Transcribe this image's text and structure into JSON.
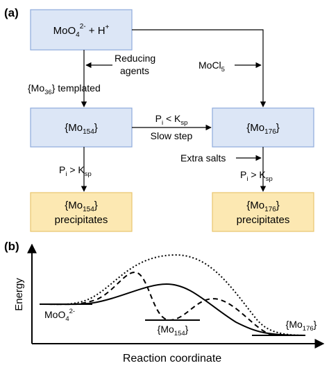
{
  "panel_a": {
    "tag": "(a)",
    "boxes": {
      "reactants": {
        "main": "MoO",
        "sub": "4",
        "sup": "2-",
        "tail": " + H",
        "tail_sup": "+"
      },
      "mo154": {
        "open": "{Mo",
        "sub": "154",
        "close": "}"
      },
      "mo176": {
        "open": "{Mo",
        "sub": "176",
        "close": "}"
      },
      "mo154_precip": {
        "line1_open": "{Mo",
        "line1_sub": "154",
        "line1_close": "}",
        "line2": "precipitates"
      },
      "mo176_precip": {
        "line1_open": "{Mo",
        "line1_sub": "176",
        "line1_close": "}",
        "line2": "precipitates"
      }
    },
    "labels": {
      "reducing_line1": "Reducing",
      "reducing_line2": "agents",
      "templated_open": "{Mo",
      "templated_sub": "36",
      "templated_close": "} templated",
      "mocl_main": "MoCl",
      "mocl_sub": "5",
      "pi_lt_p": "P",
      "pi_lt_i": "i",
      "pi_lt_mid": " < K",
      "pi_lt_sp": "sp",
      "slow_step": "Slow step",
      "pi_gt_left_p": "P",
      "pi_gt_left_i": "i",
      "pi_gt_left_mid": " > K",
      "pi_gt_left_sp": "sp",
      "extra_salts": "Extra salts",
      "pi_gt_right_p": "P",
      "pi_gt_right_i": "i",
      "pi_gt_right_mid": " > K",
      "pi_gt_right_sp": "sp"
    }
  },
  "panel_b": {
    "tag": "(b)",
    "ylabel": "Energy",
    "xlabel": "Reaction coordinate",
    "state_start_main": "MoO",
    "state_start_sub": "4",
    "state_start_sup": "2-",
    "state_mid_open": "{Mo",
    "state_mid_sub": "154",
    "state_mid_close": "}",
    "state_end_open": "{Mo",
    "state_end_sub": "176",
    "state_end_close": "}"
  },
  "colors": {
    "blue_box_fill": "#dce6f6",
    "blue_box_stroke": "#8eaadb",
    "yellow_box_fill": "#fce8b2",
    "yellow_box_stroke": "#e8c56e"
  }
}
